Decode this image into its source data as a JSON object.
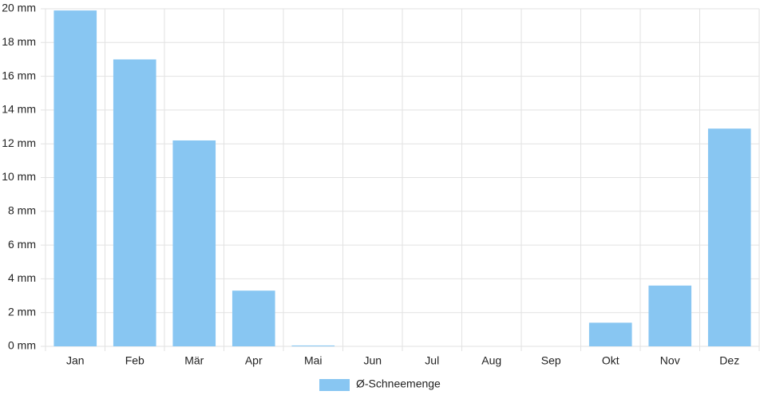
{
  "chart_data": {
    "type": "bar",
    "categories": [
      "Jan",
      "Feb",
      "Mär",
      "Apr",
      "Mai",
      "Jun",
      "Jul",
      "Aug",
      "Sep",
      "Okt",
      "Nov",
      "Dez"
    ],
    "series": [
      {
        "name": "Ø-Schneemenge",
        "color": "#88c6f2",
        "values": [
          19.9,
          17.0,
          12.2,
          3.3,
          0.05,
          0,
          0,
          0,
          0,
          1.4,
          3.6,
          12.9
        ]
      }
    ],
    "ylim": [
      0,
      20
    ],
    "yticks": [
      {
        "value": 0,
        "label": "0 mm"
      },
      {
        "value": 2,
        "label": "2 mm"
      },
      {
        "value": 4,
        "label": "4 mm"
      },
      {
        "value": 6,
        "label": "6 mm"
      },
      {
        "value": 8,
        "label": "8 mm"
      },
      {
        "value": 10,
        "label": "10 mm"
      },
      {
        "value": 12,
        "label": "12 mm"
      },
      {
        "value": 14,
        "label": "14 mm"
      },
      {
        "value": 16,
        "label": "16 mm"
      },
      {
        "value": 18,
        "label": "18 mm"
      },
      {
        "value": 20,
        "label": "20 mm"
      }
    ],
    "grid": true,
    "legend": "bottom"
  }
}
